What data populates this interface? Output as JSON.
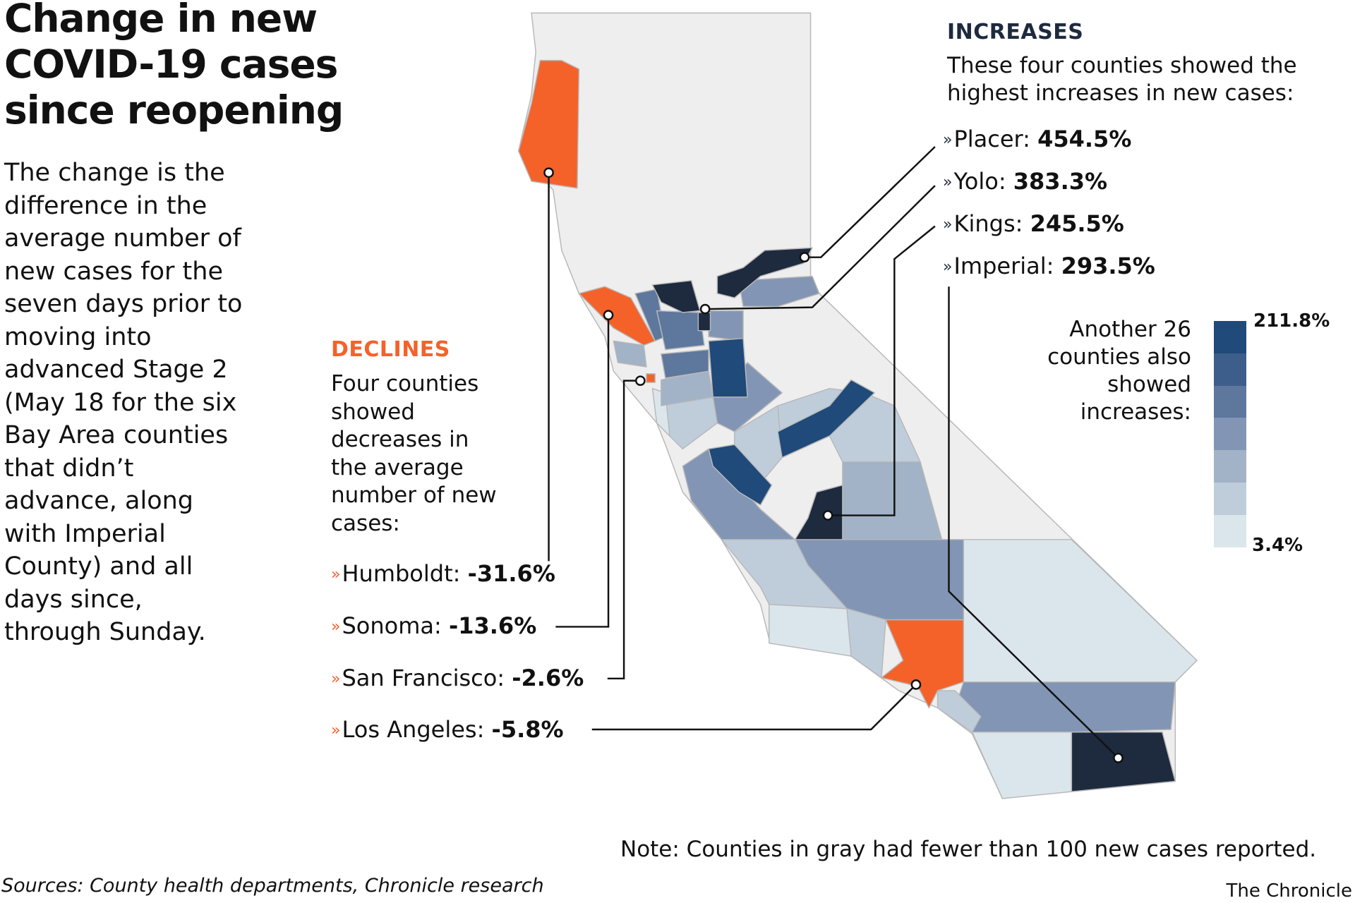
{
  "title": "Change in new COVID-19 cases since reopening",
  "description": "The change is the difference in the average number of new cases for the seven days prior to moving into advanced Stage 2 (May 18 for the six Bay Area counties that didn’t advance, along with Imperial County) and all days since, through Sunday.",
  "declines": {
    "heading": "DECLINES",
    "text": "Four counties showed decreases in the average number of new cases:",
    "items": [
      {
        "county": "Humboldt:",
        "value": "-31.6%"
      },
      {
        "county": "Sonoma:",
        "value": "-13.6%"
      },
      {
        "county": "San Francisco:",
        "value": "-2.6%"
      },
      {
        "county": "Los Angeles:",
        "value": "-5.8%"
      }
    ]
  },
  "increases": {
    "heading": "INCREASES",
    "text": "These four counties showed the highest increases in new cases:",
    "items": [
      {
        "county": "Placer:",
        "value": "454.5%"
      },
      {
        "county": "Yolo:",
        "value": "383.3%"
      },
      {
        "county": "Kings:",
        "value": "245.5%"
      },
      {
        "county": "Imperial:",
        "value": "293.5%"
      }
    ]
  },
  "legend": {
    "text": "Another 26 counties also showed increases:",
    "max_label": "211.8%",
    "min_label": "3.4%",
    "colors": [
      "#1f4a7a",
      "#3d5e8a",
      "#5d779d",
      "#8295b4",
      "#a2b2c7",
      "#bfcddb",
      "#dbe6ec"
    ]
  },
  "colors": {
    "decline": "#f4622a",
    "top_increase": "#1e2a3e",
    "low_cases_gray": "#eeeeee",
    "county_border": "#bdbdbd"
  },
  "note": "Note: Counties in gray had fewer than 100 new cases reported.",
  "sources": "Sources: County health departments, Chronicle research",
  "credit": "The Chronicle",
  "arrow_icon": "»"
}
